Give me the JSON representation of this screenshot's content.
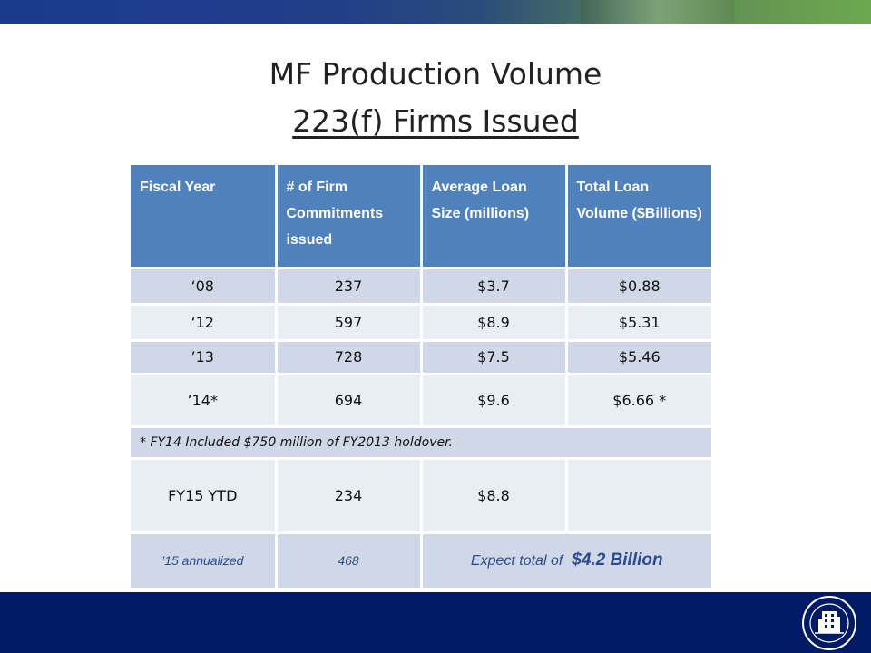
{
  "title": {
    "line1": "MF Production Volume",
    "line2": "223(f) Firms Issued"
  },
  "table": {
    "headers": [
      "Fiscal Year",
      "# of Firm Commitments issued",
      "Average Loan Size (millions)",
      "Total Loan Volume ($Billions)"
    ],
    "rows": [
      [
        "‘08",
        "237",
        "$3.7",
        "$0.88"
      ],
      [
        "‘12",
        "597",
        "$8.9",
        "$5.31"
      ],
      [
        "’13",
        "728",
        "$7.5",
        "$5.46"
      ],
      [
        "’14*",
        "694",
        "$9.6",
        "$6.66 *"
      ]
    ],
    "footnote": "* FY14 Included $750 million of FY2013 holdover.",
    "ytd": [
      "FY15 YTD",
      "234",
      "$8.8",
      ""
    ],
    "annualized": {
      "year": "’15 annualized",
      "count": "468",
      "expect_label": "Expect total of",
      "expect_value": "$4.2 Billion"
    }
  },
  "seal": {
    "icon": "hud-seal-icon",
    "text": "U.S. DEPARTMENT OF HOUSING AND URBAN DEVELOPMENT"
  },
  "colors": {
    "header": "#4f81bd",
    "band_dark": "#d0d8e8",
    "band_light": "#e9edf4",
    "footer": "#001a66"
  }
}
